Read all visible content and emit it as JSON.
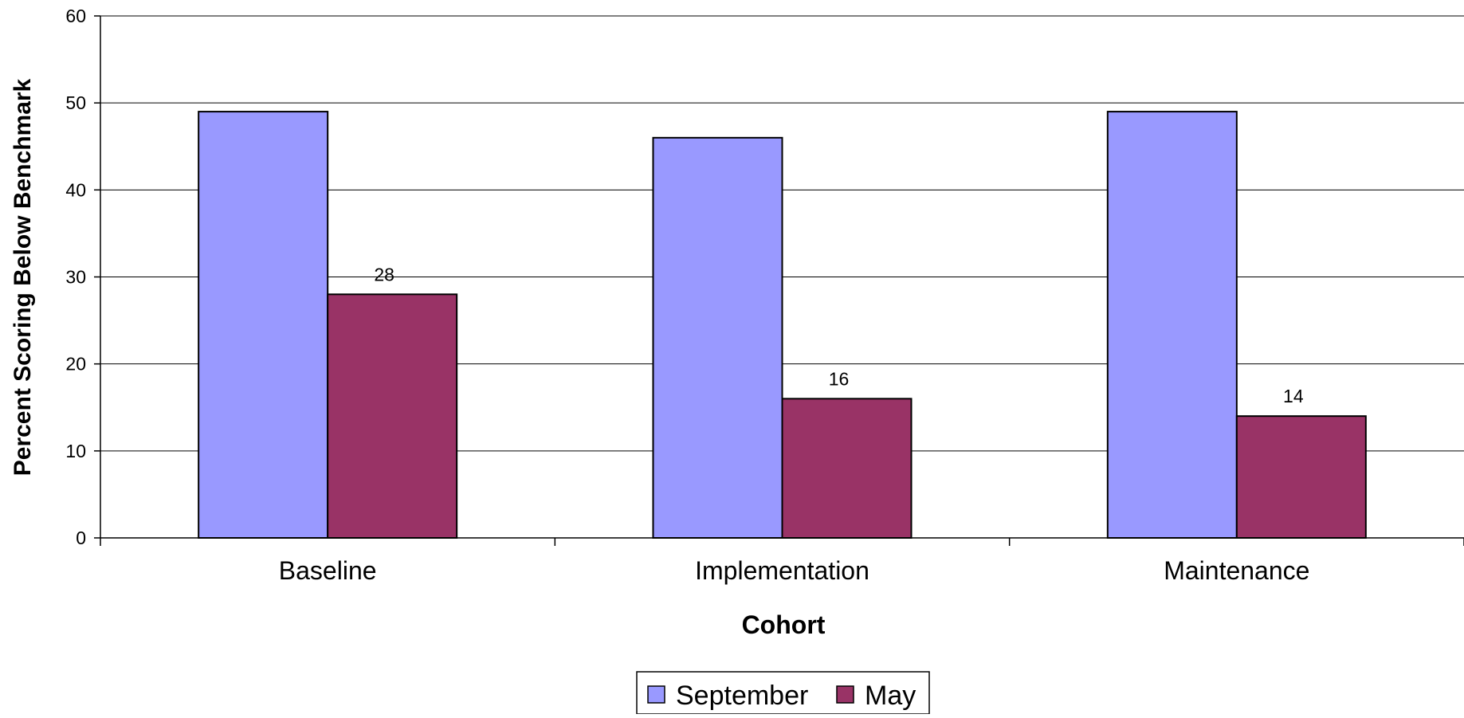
{
  "chart_data": {
    "type": "bar",
    "title": "",
    "xlabel": "Cohort",
    "ylabel": "Percent Scoring Below Benchmark",
    "categories": [
      "Baseline",
      "Implementation",
      "Maintenance"
    ],
    "series": [
      {
        "name": "September",
        "values": [
          49,
          46,
          49
        ],
        "color": "#9999FF",
        "data_labels": []
      },
      {
        "name": "May",
        "values": [
          28,
          16,
          14
        ],
        "color": "#993366",
        "data_labels": [
          "28",
          "16",
          "14"
        ]
      }
    ],
    "ylim": [
      0,
      60
    ],
    "yticks": [
      "0",
      "10",
      "20",
      "30",
      "40",
      "50",
      "60"
    ],
    "grid": true,
    "legend_position": "bottom"
  }
}
